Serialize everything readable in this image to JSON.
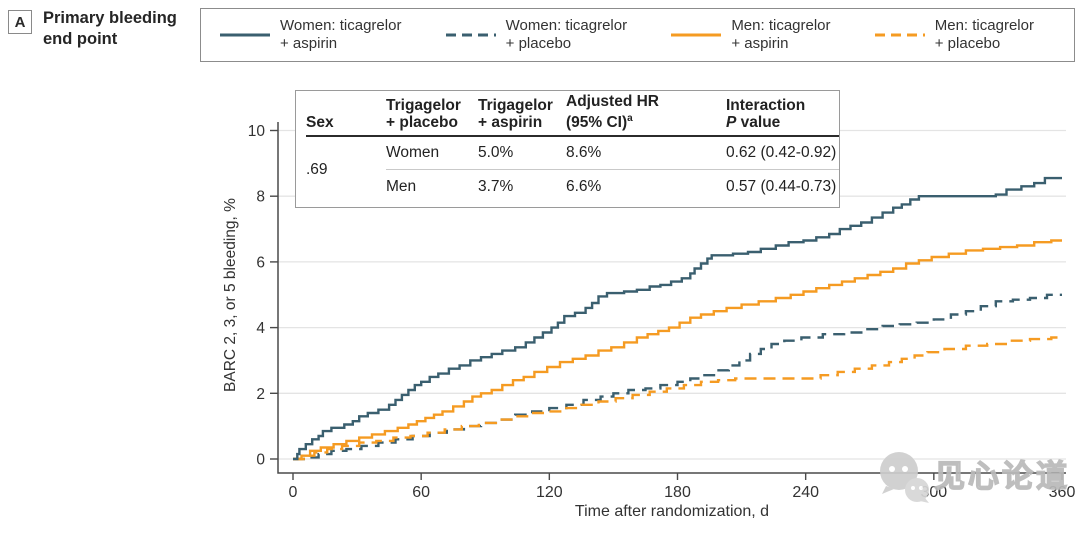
{
  "panel": {
    "label": "A",
    "title_line1": "Primary bleeding",
    "title_line2": "end point"
  },
  "legend": {
    "items": [
      {
        "id": "women-aspirin",
        "line1": "Women: ticagrelor",
        "line2": "+ aspirin",
        "color": "#3a5f6f",
        "dash": "solid"
      },
      {
        "id": "women-placebo",
        "line1": "Women: ticagrelor",
        "line2": "+ placebo",
        "color": "#3a5f6f",
        "dash": "dashed"
      },
      {
        "id": "men-aspirin",
        "line1": "Men: ticagrelor",
        "line2": "+ aspirin",
        "color": "#f59b22",
        "dash": "solid"
      },
      {
        "id": "men-placebo",
        "line1": "Men: ticagrelor",
        "line2": "+ placebo",
        "color": "#f59b22",
        "dash": "dashed"
      }
    ]
  },
  "inset_table": {
    "col_sex": "Sex",
    "col_placebo_line1": "Trigagelor",
    "col_placebo_line2": "+ placebo",
    "col_aspirin_line1": "Trigagelor",
    "col_aspirin_line2": "+ aspirin",
    "col_hr_line1": "Adjusted HR",
    "col_hr_line2": "(95% CI)",
    "col_hr_sup": "a",
    "col_p_line1": "Interaction",
    "col_p_italic": "P",
    "col_p_line2": "value",
    "rows": [
      {
        "sex": "Women",
        "placebo": "5.0%",
        "aspirin": "8.6%",
        "hr": "0.62 (0.42-0.92)"
      },
      {
        "sex": "Men",
        "placebo": "3.7%",
        "aspirin": "6.6%",
        "hr": "0.57 (0.44-0.73)"
      }
    ],
    "interaction_p": ".69"
  },
  "chart_data": {
    "type": "line",
    "subtype": "step",
    "title": "Primary bleeding end point",
    "xlabel": "Time after randomization, d",
    "ylabel": "BARC 2, 3, or 5 bleeding, %",
    "xlim": [
      0,
      360
    ],
    "ylim": [
      0,
      10
    ],
    "xticks": [
      0,
      60,
      120,
      180,
      240,
      300,
      360
    ],
    "yticks": [
      0,
      2,
      4,
      6,
      8,
      10
    ],
    "grid": "horizontal",
    "legend_position": "top",
    "series": [
      {
        "name": "Women: ticagrelor + aspirin",
        "id": "women-aspirin",
        "color": "#3a5f6f",
        "dash": "solid",
        "end_value": 8.6,
        "points": [
          [
            0,
            0
          ],
          [
            2,
            0.15
          ],
          [
            3,
            0.3
          ],
          [
            6,
            0.45
          ],
          [
            9,
            0.6
          ],
          [
            12,
            0.7
          ],
          [
            14,
            0.85
          ],
          [
            18,
            0.95
          ],
          [
            24,
            1.05
          ],
          [
            28,
            1.15
          ],
          [
            31,
            1.3
          ],
          [
            35,
            1.4
          ],
          [
            40,
            1.5
          ],
          [
            45,
            1.65
          ],
          [
            48,
            1.8
          ],
          [
            51,
            1.95
          ],
          [
            54,
            2.1
          ],
          [
            57,
            2.25
          ],
          [
            60,
            2.35
          ],
          [
            64,
            2.5
          ],
          [
            68,
            2.6
          ],
          [
            73,
            2.75
          ],
          [
            78,
            2.85
          ],
          [
            83,
            3.0
          ],
          [
            88,
            3.1
          ],
          [
            93,
            3.2
          ],
          [
            98,
            3.3
          ],
          [
            104,
            3.4
          ],
          [
            109,
            3.55
          ],
          [
            113,
            3.7
          ],
          [
            117,
            3.85
          ],
          [
            121,
            4.0
          ],
          [
            124,
            4.15
          ],
          [
            127,
            4.35
          ],
          [
            132,
            4.45
          ],
          [
            137,
            4.6
          ],
          [
            140,
            4.75
          ],
          [
            143,
            4.95
          ],
          [
            147,
            5.05
          ],
          [
            155,
            5.1
          ],
          [
            161,
            5.15
          ],
          [
            167,
            5.25
          ],
          [
            172,
            5.3
          ],
          [
            177,
            5.4
          ],
          [
            182,
            5.5
          ],
          [
            186,
            5.65
          ],
          [
            188,
            5.8
          ],
          [
            191,
            5.95
          ],
          [
            194,
            6.1
          ],
          [
            196,
            6.2
          ],
          [
            206,
            6.25
          ],
          [
            213,
            6.3
          ],
          [
            219,
            6.4
          ],
          [
            226,
            6.5
          ],
          [
            232,
            6.6
          ],
          [
            239,
            6.65
          ],
          [
            245,
            6.75
          ],
          [
            251,
            6.85
          ],
          [
            256,
            7.0
          ],
          [
            261,
            7.1
          ],
          [
            266,
            7.2
          ],
          [
            271,
            7.35
          ],
          [
            276,
            7.5
          ],
          [
            281,
            7.65
          ],
          [
            285,
            7.75
          ],
          [
            289,
            7.9
          ],
          [
            293,
            8.0
          ],
          [
            329,
            8.05
          ],
          [
            334,
            8.2
          ],
          [
            341,
            8.3
          ],
          [
            347,
            8.4
          ],
          [
            352,
            8.55
          ],
          [
            360,
            8.55
          ]
        ]
      },
      {
        "name": "Men: ticagrelor + aspirin",
        "id": "men-aspirin",
        "color": "#f59b22",
        "dash": "solid",
        "end_value": 6.6,
        "points": [
          [
            0,
            0
          ],
          [
            4,
            0.1
          ],
          [
            8,
            0.25
          ],
          [
            13,
            0.35
          ],
          [
            19,
            0.45
          ],
          [
            25,
            0.55
          ],
          [
            31,
            0.65
          ],
          [
            37,
            0.75
          ],
          [
            43,
            0.85
          ],
          [
            49,
            0.95
          ],
          [
            54,
            1.05
          ],
          [
            58,
            1.15
          ],
          [
            62,
            1.25
          ],
          [
            66,
            1.35
          ],
          [
            70,
            1.45
          ],
          [
            75,
            1.6
          ],
          [
            80,
            1.75
          ],
          [
            84,
            1.9
          ],
          [
            88,
            2.0
          ],
          [
            93,
            2.1
          ],
          [
            98,
            2.25
          ],
          [
            103,
            2.4
          ],
          [
            108,
            2.5
          ],
          [
            113,
            2.65
          ],
          [
            119,
            2.8
          ],
          [
            125,
            2.95
          ],
          [
            131,
            3.05
          ],
          [
            137,
            3.15
          ],
          [
            143,
            3.3
          ],
          [
            149,
            3.4
          ],
          [
            155,
            3.55
          ],
          [
            161,
            3.7
          ],
          [
            166,
            3.8
          ],
          [
            171,
            3.9
          ],
          [
            176,
            4.0
          ],
          [
            181,
            4.15
          ],
          [
            186,
            4.3
          ],
          [
            191,
            4.4
          ],
          [
            197,
            4.5
          ],
          [
            203,
            4.6
          ],
          [
            210,
            4.7
          ],
          [
            218,
            4.8
          ],
          [
            226,
            4.9
          ],
          [
            233,
            5.0
          ],
          [
            239,
            5.1
          ],
          [
            245,
            5.2
          ],
          [
            251,
            5.3
          ],
          [
            257,
            5.4
          ],
          [
            263,
            5.5
          ],
          [
            269,
            5.6
          ],
          [
            275,
            5.7
          ],
          [
            281,
            5.8
          ],
          [
            287,
            5.95
          ],
          [
            293,
            6.05
          ],
          [
            299,
            6.15
          ],
          [
            307,
            6.25
          ],
          [
            315,
            6.35
          ],
          [
            323,
            6.4
          ],
          [
            331,
            6.45
          ],
          [
            339,
            6.5
          ],
          [
            347,
            6.6
          ],
          [
            355,
            6.65
          ],
          [
            360,
            6.65
          ]
        ]
      },
      {
        "name": "Women: ticagrelor + placebo",
        "id": "women-placebo",
        "color": "#3a5f6f",
        "dash": "dashed",
        "end_value": 5.0,
        "points": [
          [
            0,
            0
          ],
          [
            6,
            0.05
          ],
          [
            12,
            0.15
          ],
          [
            18,
            0.25
          ],
          [
            25,
            0.3
          ],
          [
            32,
            0.4
          ],
          [
            40,
            0.5
          ],
          [
            48,
            0.6
          ],
          [
            56,
            0.7
          ],
          [
            64,
            0.8
          ],
          [
            72,
            0.9
          ],
          [
            80,
            1.0
          ],
          [
            88,
            1.1
          ],
          [
            96,
            1.2
          ],
          [
            104,
            1.35
          ],
          [
            112,
            1.45
          ],
          [
            120,
            1.55
          ],
          [
            128,
            1.65
          ],
          [
            136,
            1.8
          ],
          [
            144,
            1.9
          ],
          [
            150,
            2.0
          ],
          [
            157,
            2.1
          ],
          [
            165,
            2.15
          ],
          [
            172,
            2.25
          ],
          [
            180,
            2.35
          ],
          [
            186,
            2.45
          ],
          [
            192,
            2.55
          ],
          [
            198,
            2.7
          ],
          [
            204,
            2.85
          ],
          [
            209,
            3.0
          ],
          [
            214,
            3.2
          ],
          [
            219,
            3.35
          ],
          [
            224,
            3.5
          ],
          [
            230,
            3.6
          ],
          [
            238,
            3.7
          ],
          [
            248,
            3.8
          ],
          [
            258,
            3.85
          ],
          [
            268,
            3.95
          ],
          [
            276,
            4.05
          ],
          [
            284,
            4.1
          ],
          [
            292,
            4.15
          ],
          [
            300,
            4.25
          ],
          [
            308,
            4.4
          ],
          [
            315,
            4.5
          ],
          [
            322,
            4.65
          ],
          [
            329,
            4.8
          ],
          [
            337,
            4.85
          ],
          [
            345,
            4.9
          ],
          [
            353,
            5.0
          ],
          [
            360,
            5.0
          ]
        ]
      },
      {
        "name": "Men: ticagrelor + placebo",
        "id": "men-placebo",
        "color": "#f59b22",
        "dash": "dashed",
        "end_value": 3.7,
        "points": [
          [
            0,
            0
          ],
          [
            5,
            0.1
          ],
          [
            10,
            0.2
          ],
          [
            16,
            0.3
          ],
          [
            23,
            0.4
          ],
          [
            31,
            0.5
          ],
          [
            39,
            0.55
          ],
          [
            47,
            0.65
          ],
          [
            55,
            0.7
          ],
          [
            63,
            0.8
          ],
          [
            71,
            0.9
          ],
          [
            79,
            1.0
          ],
          [
            87,
            1.1
          ],
          [
            95,
            1.2
          ],
          [
            103,
            1.3
          ],
          [
            111,
            1.4
          ],
          [
            119,
            1.45
          ],
          [
            127,
            1.55
          ],
          [
            135,
            1.65
          ],
          [
            143,
            1.75
          ],
          [
            151,
            1.85
          ],
          [
            159,
            1.95
          ],
          [
            167,
            2.05
          ],
          [
            175,
            2.15
          ],
          [
            183,
            2.25
          ],
          [
            191,
            2.35
          ],
          [
            199,
            2.4
          ],
          [
            207,
            2.45
          ],
          [
            247,
            2.55
          ],
          [
            255,
            2.65
          ],
          [
            263,
            2.75
          ],
          [
            271,
            2.85
          ],
          [
            279,
            2.95
          ],
          [
            285,
            3.05
          ],
          [
            291,
            3.15
          ],
          [
            297,
            3.25
          ],
          [
            305,
            3.35
          ],
          [
            315,
            3.45
          ],
          [
            325,
            3.5
          ],
          [
            335,
            3.6
          ],
          [
            345,
            3.65
          ],
          [
            355,
            3.7
          ],
          [
            360,
            3.7
          ]
        ]
      }
    ]
  },
  "watermark": {
    "icon": "wechat-chat-bubbles-icon",
    "text": "见心论道"
  }
}
